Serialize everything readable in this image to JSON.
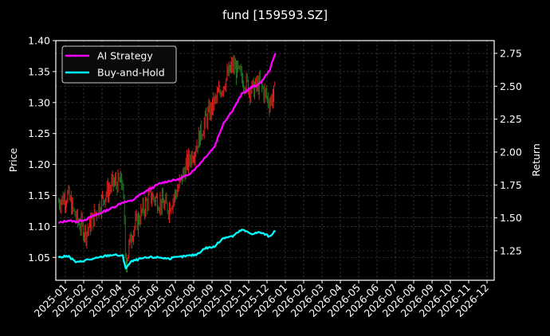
{
  "chart_data": {
    "type": "line",
    "title": "fund [159593.SZ]",
    "xlabel": "",
    "ylabel_left": "Price",
    "ylabel_right": "Return",
    "x_ticks": [
      "2025-01",
      "2025-02",
      "2025-03",
      "2025-04",
      "2025-05",
      "2025-06",
      "2025-07",
      "2025-08",
      "2025-09",
      "2025-10",
      "2025-11",
      "2025-12",
      "2026-01",
      "2026-02",
      "2026-03",
      "2026-04",
      "2026-05",
      "2026-06",
      "2026-07",
      "2026-08",
      "2026-09",
      "2026-10",
      "2026-11",
      "2026-12"
    ],
    "y_left_ticks": [
      "1.05",
      "1.10",
      "1.15",
      "1.20",
      "1.25",
      "1.30",
      "1.35",
      "1.40"
    ],
    "y_left_range": [
      1.01,
      1.4
    ],
    "y_right_ticks": [
      "1.25",
      "1.50",
      "1.75",
      "2.00",
      "2.25",
      "2.50",
      "2.75"
    ],
    "y_right_range": [
      1.03,
      2.85
    ],
    "grid": true,
    "legend_position": "upper left",
    "legend": [
      "AI Strategy",
      "Buy-and-Hold"
    ],
    "x": [
      "2024-12-20",
      "2025-01-05",
      "2025-01-20",
      "2025-02-05",
      "2025-02-20",
      "2025-03-05",
      "2025-03-20",
      "2025-04-05",
      "2025-04-10",
      "2025-04-20",
      "2025-05-05",
      "2025-05-20",
      "2025-06-05",
      "2025-06-20",
      "2025-07-05",
      "2025-07-20",
      "2025-08-05",
      "2025-08-20",
      "2025-09-05",
      "2025-09-20",
      "2025-10-05",
      "2025-10-20",
      "2025-11-05",
      "2025-11-20",
      "2025-12-05",
      "2025-12-15"
    ],
    "series": [
      {
        "name": "AI Strategy",
        "axis": "right",
        "color": "#ff00ff",
        "values": [
          1.46,
          1.48,
          1.47,
          1.49,
          1.52,
          1.55,
          1.58,
          1.62,
          1.62,
          1.63,
          1.68,
          1.72,
          1.76,
          1.78,
          1.79,
          1.82,
          1.88,
          1.96,
          2.04,
          2.22,
          2.32,
          2.44,
          2.49,
          2.52,
          2.62,
          2.75
        ]
      },
      {
        "name": "Buy-and-Hold",
        "axis": "right",
        "color": "#00ffff",
        "values": [
          1.2,
          1.21,
          1.16,
          1.18,
          1.19,
          1.21,
          1.22,
          1.21,
          1.12,
          1.17,
          1.19,
          1.2,
          1.2,
          1.19,
          1.2,
          1.21,
          1.22,
          1.27,
          1.28,
          1.35,
          1.36,
          1.41,
          1.38,
          1.39,
          1.36,
          1.4
        ]
      },
      {
        "name": "Price (candles)",
        "axis": "left",
        "color_up": "#ff2020",
        "color_down": "#208020",
        "values": [
          1.14,
          1.15,
          1.11,
          1.09,
          1.12,
          1.15,
          1.17,
          1.17,
          1.04,
          1.09,
          1.12,
          1.15,
          1.14,
          1.13,
          1.16,
          1.2,
          1.23,
          1.27,
          1.3,
          1.33,
          1.36,
          1.34,
          1.32,
          1.33,
          1.3,
          1.32
        ]
      }
    ]
  }
}
